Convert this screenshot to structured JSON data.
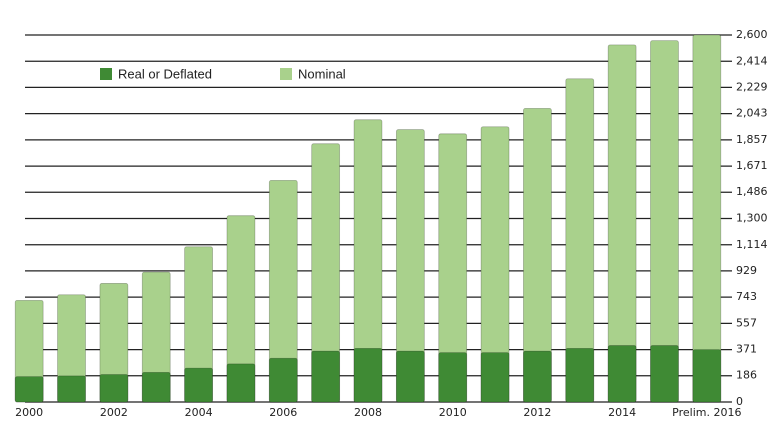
{
  "chart_data": {
    "type": "bar",
    "layout": "overlap",
    "categories": [
      "2000",
      null,
      "2002",
      null,
      "2004",
      null,
      "2006",
      null,
      "2008",
      null,
      "2010",
      null,
      "2012",
      null,
      "2014",
      null,
      "Prelim. 2016"
    ],
    "series": [
      {
        "name": "Nominal",
        "color": "#a9d18c",
        "values": [
          720,
          760,
          840,
          920,
          1100,
          1320,
          1570,
          1830,
          2000,
          1930,
          1900,
          1950,
          2080,
          2290,
          2530,
          2560,
          2600
        ]
      },
      {
        "name": "Real or Deflated",
        "color": "#3f8a34",
        "values": [
          180,
          185,
          195,
          210,
          240,
          270,
          310,
          360,
          380,
          360,
          350,
          350,
          360,
          380,
          400,
          400,
          371
        ]
      }
    ],
    "legend_order": [
      1,
      0
    ],
    "ylim": [
      0,
      2600
    ],
    "yticks": [
      0,
      186,
      371,
      557,
      743,
      929,
      {
        "value": 1114,
        "label": "1,114"
      },
      {
        "value": 1300,
        "label": "1,300"
      },
      {
        "value": 1486,
        "label": "1,486"
      },
      {
        "value": 1671,
        "label": "1,671"
      },
      {
        "value": 1857,
        "label": "1,857"
      },
      {
        "value": 2043,
        "label": "2,043"
      },
      {
        "value": 2229,
        "label": "2,229"
      },
      {
        "value": 2414,
        "label": "2,414"
      },
      {
        "value": 2600,
        "label": "2,600"
      }
    ],
    "grid": true
  }
}
